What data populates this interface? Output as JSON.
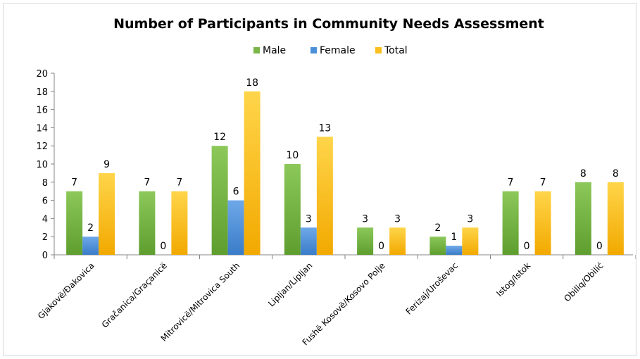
{
  "chart_data": {
    "type": "bar",
    "title": "Number of Participants  in Community Needs Assessment",
    "xlabel": "",
    "ylabel": "",
    "ylim": [
      0,
      20
    ],
    "yticks": [
      0,
      2,
      4,
      6,
      8,
      10,
      12,
      14,
      16,
      18,
      20
    ],
    "grid": false,
    "legend_position": "top",
    "categories": [
      "Gjakovë/Đakovica",
      "Gračanica/Graçanicë",
      "Mitrovicë/Mitrovica South",
      "Lipljan/Lipljan",
      "Fushë Kosovë/Kosovo Polje",
      "Ferizaj/Uroševac",
      "Istog/Istok",
      "Obiliq/Obilić"
    ],
    "series": [
      {
        "name": "Male",
        "color": "#7ab648",
        "values": [
          7,
          7,
          12,
          10,
          3,
          2,
          7,
          8
        ]
      },
      {
        "name": "Female",
        "color": "#4a90d9",
        "values": [
          2,
          0,
          6,
          3,
          0,
          1,
          0,
          0
        ]
      },
      {
        "name": "Total",
        "color": "#f9bf1c",
        "values": [
          9,
          7,
          18,
          13,
          3,
          3,
          7,
          8
        ]
      }
    ]
  }
}
